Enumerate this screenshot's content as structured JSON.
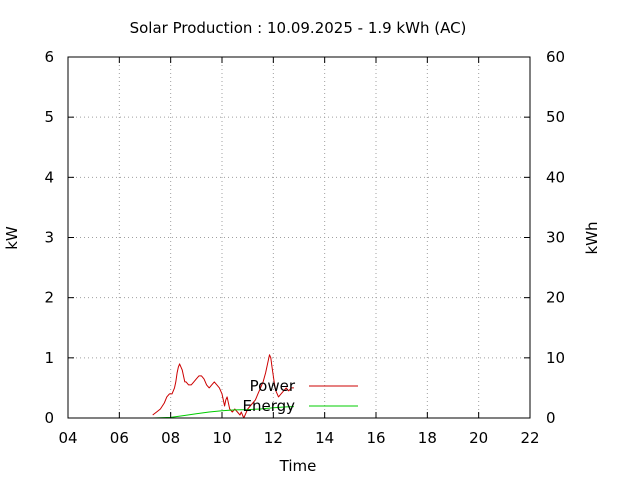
{
  "chart_data": {
    "type": "line",
    "title": "Solar Production : 10.09.2025 - 1.9 kWh (AC)",
    "xlabel": "Time",
    "ylabel": "kW",
    "y2label": "kWh",
    "xlim": [
      4,
      22
    ],
    "ylim": [
      0,
      6
    ],
    "y2lim": [
      0,
      60
    ],
    "x_ticks": [
      "04",
      "06",
      "08",
      "10",
      "12",
      "14",
      "16",
      "18",
      "20",
      "22"
    ],
    "y_ticks": [
      "0",
      "1",
      "2",
      "3",
      "4",
      "5",
      "6"
    ],
    "y2_ticks": [
      "0",
      "10",
      "20",
      "30",
      "40",
      "50",
      "60"
    ],
    "grid": true,
    "legend_position": "bottom-center",
    "series": [
      {
        "name": "Power",
        "axis": "left",
        "color": "#cc0000",
        "x": [
          7.3,
          7.45,
          7.6,
          7.75,
          7.85,
          7.95,
          8.05,
          8.15,
          8.2,
          8.25,
          8.3,
          8.35,
          8.4,
          8.45,
          8.5,
          8.55,
          8.6,
          8.7,
          8.8,
          8.9,
          9.0,
          9.1,
          9.2,
          9.3,
          9.4,
          9.5,
          9.6,
          9.7,
          9.8,
          9.9,
          10.0,
          10.05,
          10.1,
          10.15,
          10.2,
          10.25,
          10.3,
          10.4,
          10.5,
          10.6,
          10.7,
          10.75,
          10.8,
          10.85,
          10.9,
          11.0,
          11.1,
          11.2,
          11.3,
          11.4,
          11.5,
          11.6,
          11.7,
          11.8,
          11.85,
          11.9,
          11.95,
          12.0,
          12.05,
          12.1,
          12.15,
          12.2,
          12.3,
          12.4,
          12.5,
          12.6,
          12.7,
          12.8
        ],
        "values": [
          0.05,
          0.1,
          0.15,
          0.25,
          0.35,
          0.4,
          0.4,
          0.5,
          0.6,
          0.75,
          0.85,
          0.9,
          0.85,
          0.8,
          0.7,
          0.6,
          0.6,
          0.55,
          0.55,
          0.6,
          0.65,
          0.7,
          0.7,
          0.65,
          0.55,
          0.5,
          0.55,
          0.6,
          0.55,
          0.5,
          0.4,
          0.3,
          0.2,
          0.3,
          0.35,
          0.25,
          0.15,
          0.1,
          0.15,
          0.1,
          0.05,
          0.1,
          0.05,
          0.0,
          0.05,
          0.15,
          0.2,
          0.25,
          0.3,
          0.4,
          0.5,
          0.6,
          0.75,
          0.95,
          1.05,
          1.0,
          0.85,
          0.7,
          0.55,
          0.45,
          0.4,
          0.35,
          0.4,
          0.45,
          0.5,
          0.45,
          0.5,
          0.5
        ]
      },
      {
        "name": "Energy",
        "axis": "right",
        "color": "#00cc00",
        "x": [
          7.3,
          8.0,
          8.5,
          9.0,
          9.5,
          10.0,
          10.5,
          11.0,
          11.5,
          12.0,
          12.5,
          12.8
        ],
        "values": [
          0.0,
          0.1,
          0.4,
          0.7,
          1.0,
          1.2,
          1.35,
          1.4,
          1.5,
          1.7,
          1.85,
          1.9
        ]
      }
    ]
  }
}
